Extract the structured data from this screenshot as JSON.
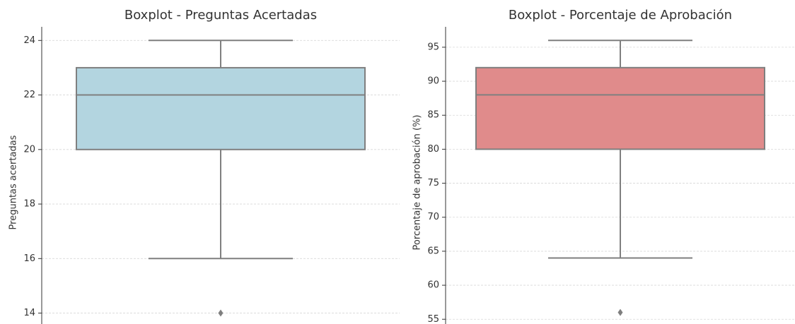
{
  "chart_data": [
    {
      "type": "box",
      "title": "Boxplot - Preguntas Acertadas",
      "y_label": "Preguntas acertadas",
      "color": "#b3d5e0",
      "edge_color": "#7f7f7f",
      "box": {
        "whislo": 16,
        "q1": 20,
        "med": 22,
        "q3": 23,
        "whishi": 24,
        "fliers": [
          14
        ]
      },
      "ylim": [
        13.6,
        24.5
      ],
      "yticks": [
        14,
        16,
        18,
        20,
        22,
        24
      ],
      "grid": true
    },
    {
      "type": "box",
      "title": "Boxplot - Porcentaje de Aprobación",
      "y_label": "Porcentaje de aprobación (%)",
      "color": "#e08b8b",
      "edge_color": "#7f7f7f",
      "box": {
        "whislo": 64,
        "q1": 80,
        "med": 88,
        "q3": 92,
        "whishi": 96,
        "fliers": [
          56
        ]
      },
      "ylim": [
        54.3,
        98
      ],
      "yticks": [
        55,
        60,
        65,
        70,
        75,
        80,
        85,
        90,
        95
      ],
      "grid": true
    }
  ]
}
